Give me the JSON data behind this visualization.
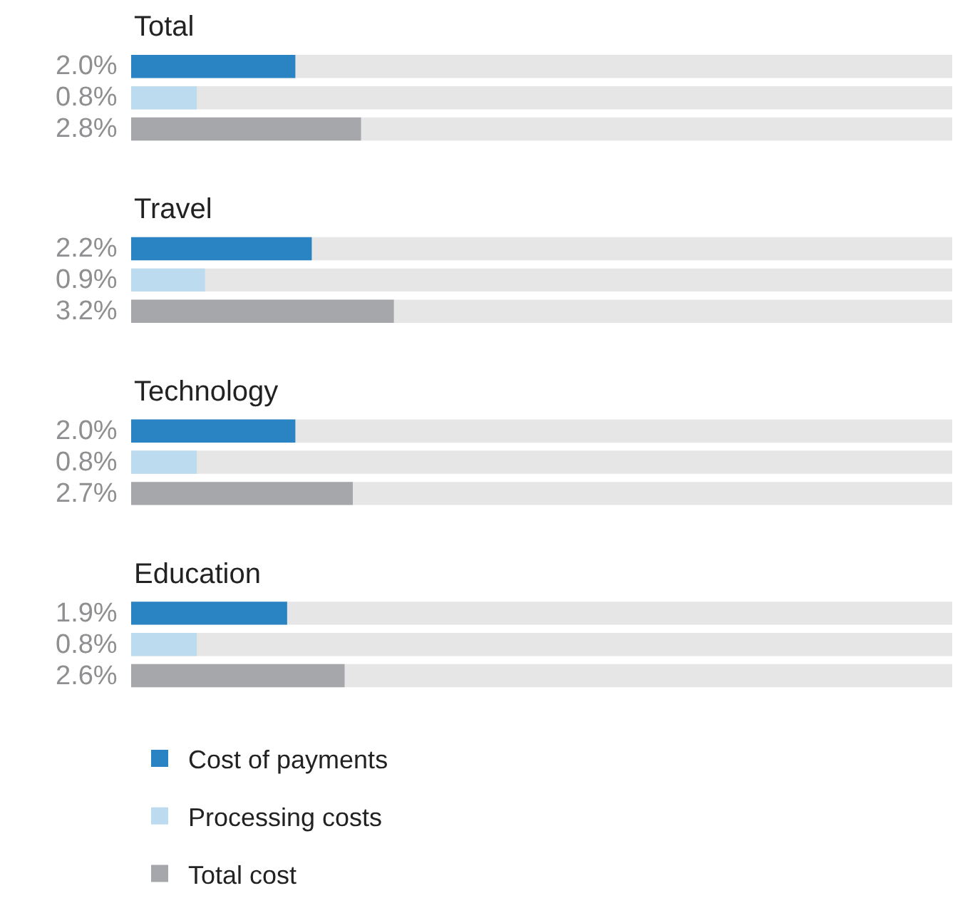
{
  "chart_data": {
    "type": "bar",
    "orientation": "horizontal",
    "relative": false,
    "categories": [
      "Total",
      "Travel",
      "Technology",
      "Education"
    ],
    "series": [
      {
        "name": "Cost of payments",
        "color": "#2a84c4",
        "values": [
          2.0,
          2.2,
          2.0,
          1.9
        ],
        "value_labels": [
          "2.0%",
          "2.2%",
          "2.0%",
          "1.9%"
        ]
      },
      {
        "name": "Processing costs",
        "color": "#bddbee",
        "values": [
          0.8,
          0.9,
          0.8,
          0.8
        ],
        "value_labels": [
          "0.8%",
          "0.9%",
          "0.8%",
          "0.8%"
        ]
      },
      {
        "name": "Total cost",
        "color": "#a6a7aa",
        "values": [
          2.8,
          3.2,
          2.7,
          2.6
        ],
        "value_labels": [
          "2.8%",
          "3.2%",
          "2.7%",
          "2.6%"
        ]
      }
    ],
    "xlim": [
      0,
      10
    ],
    "tick_labels": false,
    "grid": false,
    "legend": "bottom"
  }
}
